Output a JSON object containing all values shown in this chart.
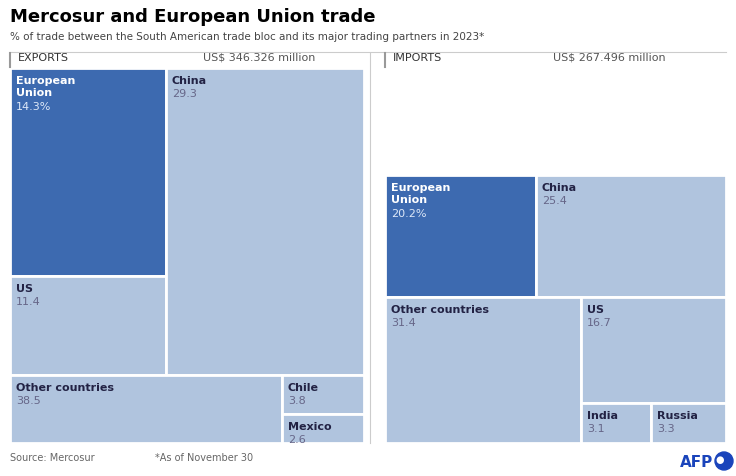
{
  "title": "Mercosur and European Union trade",
  "subtitle": "% of trade between the South American trade bloc and its major trading partners in 2023*",
  "source": "Source: Mercosur",
  "footnote": "*As of November 30",
  "exports_label": "EXPORTS",
  "exports_total": "US$ 346.326 million",
  "imports_label": "IMPORTS",
  "imports_total": "US$ 267.496 million",
  "color_dark": "#3d6ab0",
  "color_light": "#b0c4de",
  "color_bg": "#ffffff",
  "color_name_dark": "#222244",
  "color_val_dark": "#666688",
  "color_name_white": "#ffffff",
  "color_val_white": "#dde8f8",
  "color_line": "#cccccc",
  "color_footer": "#666666",
  "exports": {
    "EU": {
      "pct": 14.3,
      "label_pct": "14.3%"
    },
    "China": {
      "pct": 29.3,
      "label_pct": "29.3"
    },
    "US": {
      "pct": 11.4,
      "label_pct": "11.4"
    },
    "Other countries": {
      "pct": 38.5,
      "label_pct": "38.5"
    },
    "Chile": {
      "pct": 3.8,
      "label_pct": "3.8"
    },
    "Mexico": {
      "pct": 2.6,
      "label_pct": "2.6"
    }
  },
  "imports": {
    "EU": {
      "pct": 20.2,
      "label_pct": "20.2%"
    },
    "China": {
      "pct": 25.4,
      "label_pct": "25.4"
    },
    "Other countries": {
      "pct": 31.4,
      "label_pct": "31.4"
    },
    "US": {
      "pct": 16.7,
      "label_pct": "16.7"
    },
    "India": {
      "pct": 3.1,
      "label_pct": "3.1"
    },
    "Russia": {
      "pct": 3.3,
      "label_pct": "3.3"
    }
  }
}
